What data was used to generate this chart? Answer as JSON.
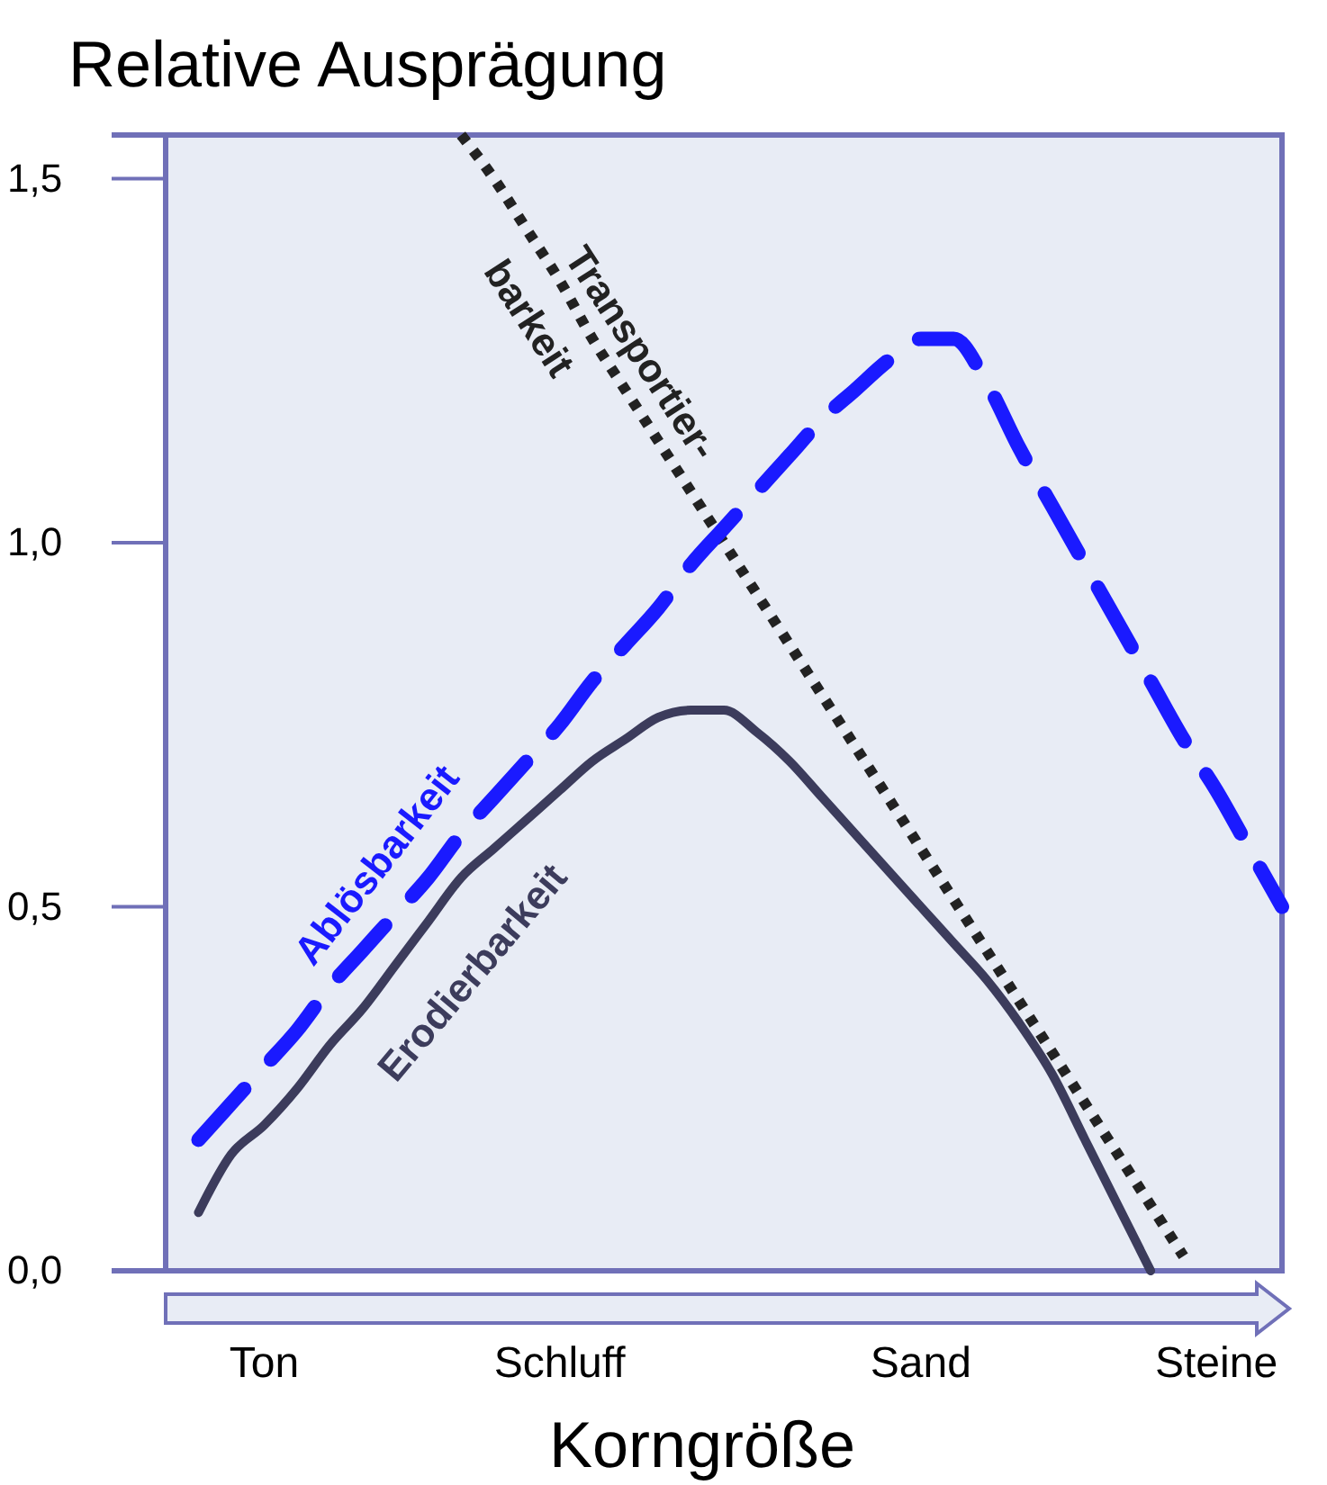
{
  "chart_data": {
    "type": "line",
    "title": "Relative Ausprägung",
    "xlabel": "Korngröße",
    "categories": [
      null,
      null,
      null,
      "Ton",
      null,
      null,
      null,
      null,
      null,
      null,
      null,
      null,
      "Schluff",
      null,
      null,
      null,
      null,
      null,
      null,
      null,
      null,
      null,
      null,
      "Sand",
      null,
      null,
      null,
      null,
      null,
      null,
      null,
      null,
      "Steine",
      null,
      null
    ],
    "ylim": [
      0,
      1.56
    ],
    "yticks": [
      {
        "value": 0,
        "label": "0,0"
      },
      {
        "value": 0.5,
        "label": "0,5"
      },
      {
        "value": 1,
        "label": "1,0"
      },
      {
        "value": 1.5,
        "label": "1,5"
      }
    ],
    "grid": false,
    "series": [
      {
        "name": "Transportier-\nbarkeit",
        "color": "#222222",
        "line_style": "dotted",
        "values": [
          null,
          null,
          null,
          null,
          null,
          null,
          null,
          null,
          null,
          1.56,
          1.5,
          1.43,
          1.36,
          1.28,
          1.21,
          1.14,
          1.07,
          1.0,
          0.93,
          0.86,
          0.79,
          0.72,
          0.65,
          0.58,
          0.51,
          0.44,
          0.37,
          0.3,
          0.23,
          0.16,
          0.09,
          0.02,
          null,
          null,
          null
        ]
      },
      {
        "name": "Ablösbarkeit",
        "color": "#1a1aff",
        "line_style": "dashed",
        "values": [
          null,
          0.18,
          0.23,
          0.28,
          0.33,
          0.39,
          0.44,
          0.49,
          0.54,
          0.6,
          0.65,
          0.7,
          0.75,
          0.81,
          0.86,
          0.91,
          0.97,
          1.02,
          1.07,
          1.12,
          1.17,
          1.21,
          1.25,
          1.28,
          1.28,
          1.22,
          1.13,
          1.05,
          0.97,
          0.89,
          0.81,
          0.73,
          0.66,
          0.58,
          0.5
        ]
      },
      {
        "name": "Erodierbarkeit",
        "color": "#3c3c5c",
        "line_style": "solid",
        "values": [
          null,
          0.08,
          0.16,
          0.2,
          0.25,
          0.31,
          0.36,
          0.42,
          0.48,
          0.54,
          0.58,
          0.62,
          0.66,
          0.7,
          0.73,
          0.76,
          0.77,
          0.77,
          0.74,
          0.7,
          0.65,
          0.6,
          0.55,
          0.5,
          0.45,
          0.4,
          0.34,
          0.27,
          0.18,
          0.09,
          0,
          null,
          null,
          null,
          null
        ]
      }
    ]
  }
}
